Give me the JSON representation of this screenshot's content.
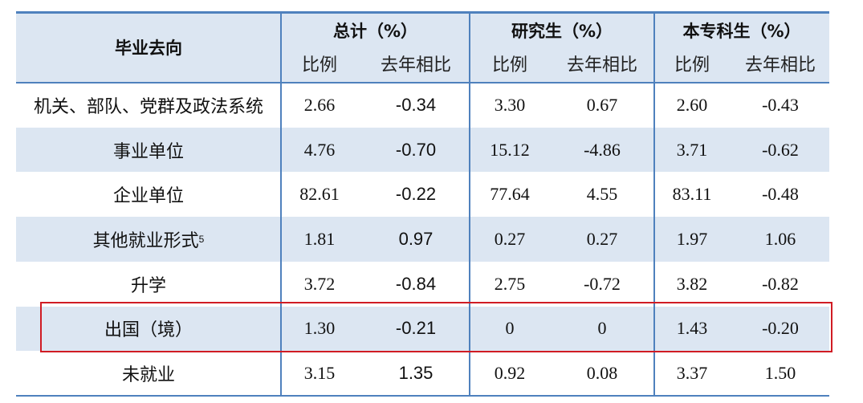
{
  "table": {
    "header": {
      "label": "毕业去向",
      "groups": [
        {
          "title": "总计（%）",
          "sub": [
            "比例",
            "去年相比"
          ]
        },
        {
          "title": "研究生（%）",
          "sub": [
            "比例",
            "去年相比"
          ]
        },
        {
          "title": "本专科生（%）",
          "sub": [
            "比例",
            "去年相比"
          ]
        }
      ]
    },
    "rows": [
      {
        "label": "机关、部队、党群及政法系统",
        "values": [
          "2.66",
          "-0.34",
          "3.30",
          "0.67",
          "2.60",
          "-0.43"
        ]
      },
      {
        "label": "事业单位",
        "values": [
          "4.76",
          "-0.70",
          "15.12",
          "-4.86",
          "3.71",
          "-0.62"
        ]
      },
      {
        "label": "企业单位",
        "values": [
          "82.61",
          "-0.22",
          "77.64",
          "4.55",
          "83.11",
          "-0.48"
        ]
      },
      {
        "label": "其他就业形式",
        "note": "5",
        "values": [
          "1.81",
          "0.97",
          "0.27",
          "0.27",
          "1.97",
          "1.06"
        ]
      },
      {
        "label": "升学",
        "values": [
          "3.72",
          "-0.84",
          "2.75",
          "-0.72",
          "3.82",
          "-0.82"
        ]
      },
      {
        "label": "出国（境）",
        "values": [
          "1.30",
          "-0.21",
          "0",
          "0",
          "1.43",
          "-0.20"
        ]
      },
      {
        "label": "未就业",
        "values": [
          "3.15",
          "1.35",
          "0.92",
          "0.08",
          "3.37",
          "1.50"
        ]
      }
    ]
  }
}
